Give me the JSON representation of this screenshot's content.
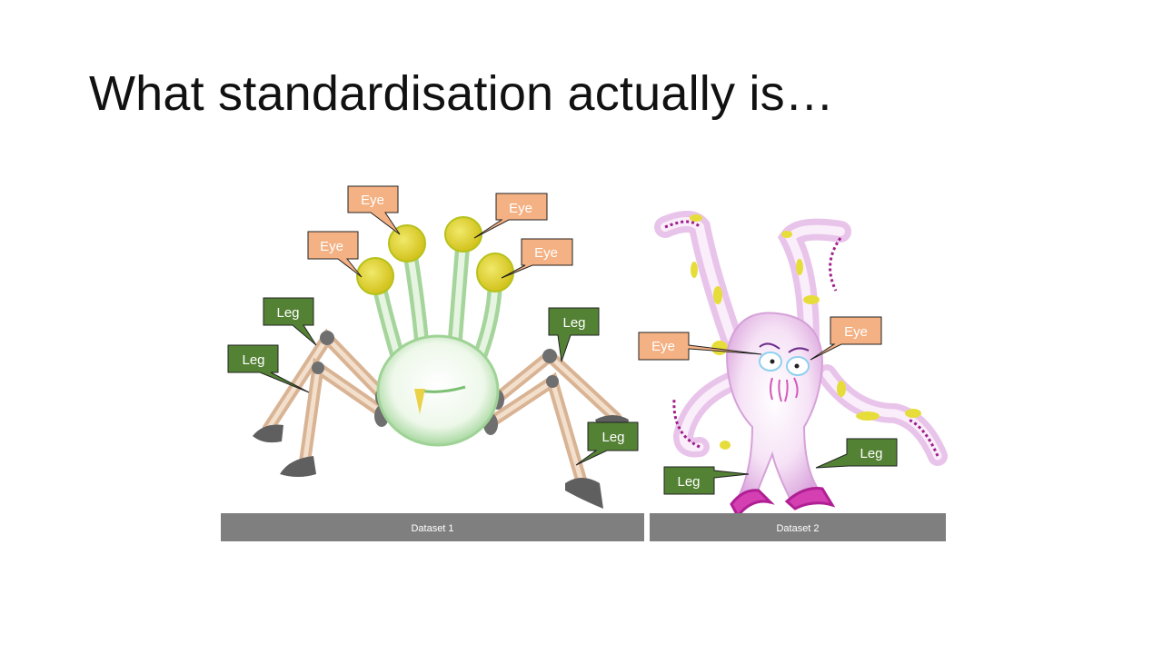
{
  "slide": {
    "title": "What standardisation actually is…"
  },
  "datasets": [
    {
      "caption": "Dataset 1",
      "creature": "green spider creature",
      "labels": [
        "Eye",
        "Eye",
        "Eye",
        "Eye",
        "Leg",
        "Leg",
        "Leg",
        "Leg"
      ]
    },
    {
      "caption": "Dataset 2",
      "creature": "pink octopus creature",
      "labels": [
        "Eye",
        "Eye",
        "Leg",
        "Leg"
      ]
    }
  ],
  "colors": {
    "eye_label": "#f4b183",
    "leg_label": "#548235",
    "caption_bar": "#7f7f7f"
  }
}
